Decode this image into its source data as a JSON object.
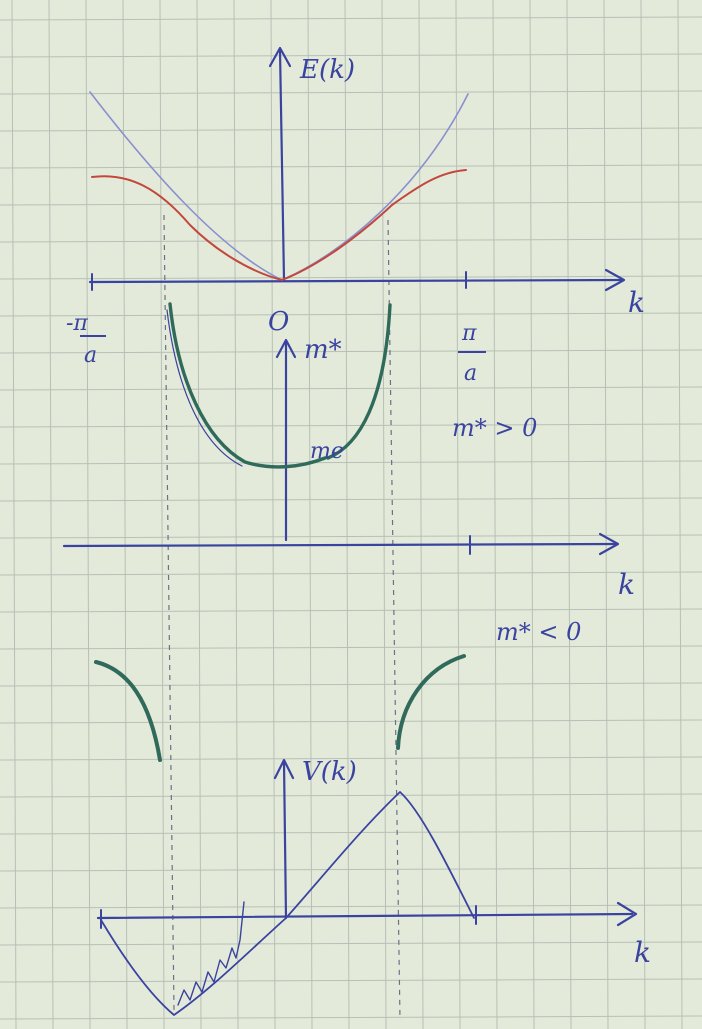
{
  "labels": {
    "energy_axis": "E(k)",
    "k_axis_top": "k",
    "k_axis_mid": "k",
    "k_axis_bottom": "k",
    "origin": "O",
    "neg_bz_num": "-π",
    "neg_bz_den": "a",
    "pos_bz_num": "π",
    "pos_bz_den": "a",
    "mass_axis": "m*",
    "electron_mass": "me",
    "positive_mass": "m* > 0",
    "negative_mass": "m* < 0",
    "velocity_axis": "V(k)"
  },
  "colors": {
    "paper": "#e4ead9",
    "grid": "#b7c0b7",
    "ink": "#3a44a0",
    "free_electron": "#8a8fd0",
    "band": "#c2483e",
    "mass": "#2f6a5b",
    "guide": "#6d6f8a"
  }
}
